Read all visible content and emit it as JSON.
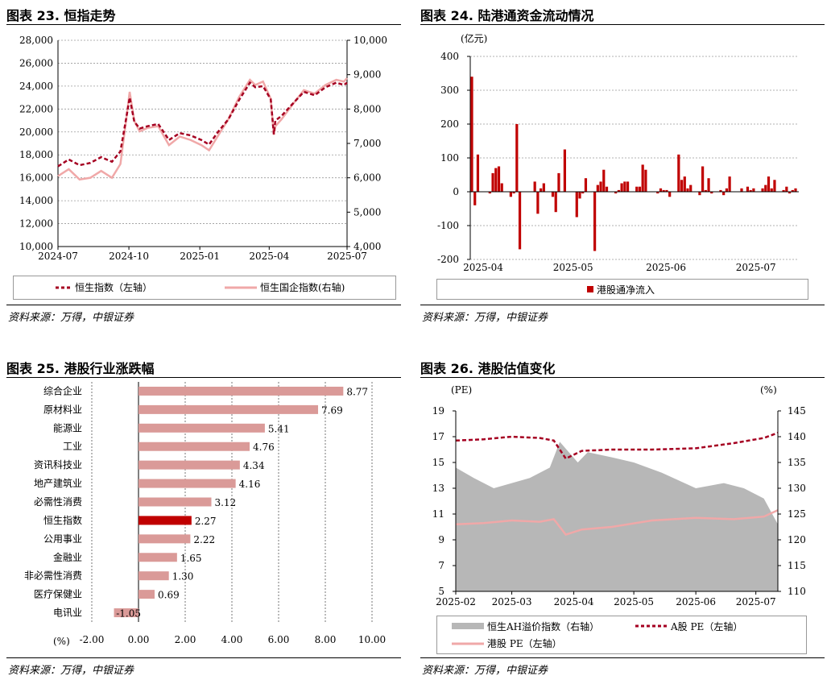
{
  "colors": {
    "darkred": "#A50021",
    "pink": "#F0A8A8",
    "bar": "#C00000",
    "barlight": "#DA9A98",
    "gray": "#B7B7B7"
  },
  "source_text": "资料来源：万得，中银证券",
  "charts": [
    {
      "id": "c23",
      "title": "图表 23. 恒指走势",
      "chart_data": {
        "type": "line",
        "x_ticks": [
          "2024-07",
          "2024-10",
          "2025-01",
          "2025-04",
          "2025-07"
        ],
        "y_left_ticks": [
          "10,000",
          "12,000",
          "14,000",
          "16,000",
          "18,000",
          "20,000",
          "22,000",
          "24,000",
          "26,000",
          "28,000"
        ],
        "y_right_ticks": [
          "4,000",
          "5,000",
          "6,000",
          "7,000",
          "8,000",
          "9,000",
          "10,000"
        ],
        "ylim_left": [
          10000,
          28000
        ],
        "ylim_right": [
          4000,
          10000
        ],
        "legend_position": "bottom",
        "series": [
          {
            "name": "恒生指数（左轴）",
            "axis": "left",
            "style": "dashed",
            "x": [
              "2024-07-01",
              "2024-07-15",
              "2024-07-29",
              "2024-08-12",
              "2024-08-26",
              "2024-09-09",
              "2024-09-20",
              "2024-09-27",
              "2024-10-02",
              "2024-10-08",
              "2024-10-15",
              "2024-10-25",
              "2024-11-08",
              "2024-11-22",
              "2024-12-06",
              "2024-12-20",
              "2025-01-03",
              "2025-01-13",
              "2025-01-24",
              "2025-02-07",
              "2025-02-21",
              "2025-03-07",
              "2025-03-14",
              "2025-03-24",
              "2025-04-03",
              "2025-04-07",
              "2025-04-09",
              "2025-04-17",
              "2025-05-02",
              "2025-05-16",
              "2025-05-30",
              "2025-06-13",
              "2025-06-27",
              "2025-07-07",
              "2025-07-11"
            ],
            "values": [
              17000,
              17600,
              17100,
              17300,
              17800,
              17400,
              18300,
              21000,
              23000,
              20900,
              20300,
              20500,
              20700,
              19300,
              19900,
              19700,
              19300,
              18900,
              19950,
              21100,
              22800,
              24300,
              23900,
              24000,
              22850,
              19800,
              21000,
              21400,
              22500,
              23500,
              23200,
              23900,
              24300,
              24100,
              24300
            ]
          },
          {
            "name": "恒生国企指数(右轴)",
            "axis": "right",
            "style": "solid",
            "x": [
              "2024-07-01",
              "2024-07-15",
              "2024-07-29",
              "2024-08-12",
              "2024-08-26",
              "2024-09-09",
              "2024-09-20",
              "2024-09-27",
              "2024-10-02",
              "2024-10-08",
              "2024-10-15",
              "2024-10-25",
              "2024-11-08",
              "2024-11-22",
              "2024-12-06",
              "2024-12-20",
              "2025-01-03",
              "2025-01-13",
              "2025-01-24",
              "2025-02-07",
              "2025-02-21",
              "2025-03-07",
              "2025-03-14",
              "2025-03-24",
              "2025-04-03",
              "2025-04-07",
              "2025-04-09",
              "2025-04-17",
              "2025-05-02",
              "2025-05-16",
              "2025-05-30",
              "2025-06-13",
              "2025-06-27",
              "2025-07-07",
              "2025-07-11"
            ],
            "values": [
              6050,
              6250,
              5950,
              6000,
              6200,
              6000,
              6400,
              7600,
              8500,
              7650,
              7350,
              7450,
              7500,
              6950,
              7200,
              7100,
              6950,
              6800,
              7200,
              7700,
              8350,
              8850,
              8700,
              8800,
              8300,
              7250,
              7500,
              7700,
              8150,
              8550,
              8450,
              8700,
              8850,
              8800,
              8900
            ]
          }
        ]
      }
    },
    {
      "id": "c24",
      "title": "图表 24. 陆港通资金流动情况",
      "chart_data": {
        "type": "bar",
        "unit_label": "(亿元)",
        "x_ticks": [
          "2025-04",
          "2025-05",
          "2025-06",
          "2025-07"
        ],
        "y_ticks": [
          "-200",
          "-100",
          "0",
          "100",
          "200",
          "300",
          "400"
        ],
        "ylim": [
          -200,
          400
        ],
        "legend_position": "bottom",
        "series": [
          {
            "name": "港股通净流入",
            "x": [
              "2025-04-01",
              "2025-04-02",
              "2025-04-03",
              "2025-04-07",
              "2025-04-08",
              "2025-04-09",
              "2025-04-10",
              "2025-04-11",
              "2025-04-14",
              "2025-04-15",
              "2025-04-16",
              "2025-04-17",
              "2025-04-22",
              "2025-04-23",
              "2025-04-24",
              "2025-04-25",
              "2025-04-28",
              "2025-04-29",
              "2025-04-30",
              "2025-05-02",
              "2025-05-06",
              "2025-05-07",
              "2025-05-08",
              "2025-05-09",
              "2025-05-12",
              "2025-05-13",
              "2025-05-14",
              "2025-05-15",
              "2025-05-16",
              "2025-05-19",
              "2025-05-20",
              "2025-05-21",
              "2025-05-22",
              "2025-05-23",
              "2025-05-26",
              "2025-05-27",
              "2025-05-28",
              "2025-05-29",
              "2025-06-02",
              "2025-06-03",
              "2025-06-04",
              "2025-06-05",
              "2025-06-06",
              "2025-06-09",
              "2025-06-10",
              "2025-06-11",
              "2025-06-12",
              "2025-06-13",
              "2025-06-16",
              "2025-06-17",
              "2025-06-18",
              "2025-06-19",
              "2025-06-20",
              "2025-06-23",
              "2025-06-24",
              "2025-06-25",
              "2025-06-26",
              "2025-06-27",
              "2025-06-30",
              "2025-07-02",
              "2025-07-03",
              "2025-07-04",
              "2025-07-07",
              "2025-07-08",
              "2025-07-09",
              "2025-07-10",
              "2025-07-11",
              "2025-07-14",
              "2025-07-15",
              "2025-07-16",
              "2025-07-17",
              "2025-07-18"
            ],
            "values": [
              340,
              -40,
              110,
              -5,
              55,
              70,
              75,
              25,
              -15,
              -5,
              200,
              -170,
              30,
              -65,
              10,
              25,
              -15,
              -60,
              55,
              125,
              -75,
              -20,
              -5,
              40,
              -175,
              20,
              30,
              65,
              15,
              -5,
              5,
              25,
              30,
              30,
              15,
              15,
              80,
              65,
              -5,
              10,
              5,
              5,
              -15,
              110,
              35,
              45,
              10,
              20,
              -10,
              75,
              5,
              40,
              -5,
              5,
              -10,
              10,
              45,
              0,
              10,
              15,
              5,
              10,
              10,
              20,
              45,
              10,
              35,
              5,
              15,
              -5,
              5,
              10
            ]
          }
        ]
      }
    },
    {
      "id": "c25",
      "title": "图表 25. 港股行业涨跌幅",
      "chart_data": {
        "type": "bar",
        "orientation": "horizontal",
        "unit_label": "(%)",
        "categories": [
          "综合企业",
          "原材料业",
          "能源业",
          "工业",
          "资讯科技业",
          "地产建筑业",
          "必需性消费",
          "恒生指数",
          "公用事业",
          "金融业",
          "非必需性消费",
          "医疗保健业",
          "电讯业"
        ],
        "values": [
          8.77,
          7.69,
          5.41,
          4.76,
          4.34,
          4.16,
          3.12,
          2.27,
          2.22,
          1.65,
          1.3,
          0.69,
          -1.05
        ],
        "value_labels": [
          "8.77",
          "7.69",
          "5.41",
          "4.76",
          "4.34",
          "4.16",
          "3.12",
          "2.27",
          "2.22",
          "1.65",
          "1.30",
          "0.69",
          "-1.05"
        ],
        "highlight": "恒生指数",
        "x_ticks": [
          "-2.00",
          "0.00",
          "2.00",
          "4.00",
          "6.00",
          "8.00",
          "10.00"
        ],
        "xlim": [
          -2,
          10
        ]
      }
    },
    {
      "id": "c26",
      "title": "图表 26. 港股估值变化",
      "chart_data": {
        "type": "area",
        "left_unit": "(PE)",
        "right_unit": "(%)",
        "x_ticks": [
          "2025-02",
          "2025-03",
          "2025-04",
          "2025-05",
          "2025-06",
          "2025-07"
        ],
        "y_left_ticks": [
          "5",
          "7",
          "9",
          "11",
          "13",
          "15",
          "17",
          "19"
        ],
        "y_right_ticks": [
          "110",
          "115",
          "120",
          "125",
          "130",
          "135",
          "140",
          "145"
        ],
        "ylim_left": [
          5,
          19
        ],
        "ylim_right": [
          110,
          145
        ],
        "legend_position": "bottom",
        "series": [
          {
            "name": "恒生AH溢价指数（右轴）",
            "axis": "right",
            "kind": "area",
            "x": [
              "2025-02-01",
              "2025-02-10",
              "2025-02-20",
              "2025-03-01",
              "2025-03-10",
              "2025-03-20",
              "2025-03-25",
              "2025-04-03",
              "2025-04-08",
              "2025-04-20",
              "2025-05-01",
              "2025-05-15",
              "2025-06-01",
              "2025-06-15",
              "2025-06-25",
              "2025-07-05",
              "2025-07-12"
            ],
            "values": [
              134,
              132,
              130,
              131,
              132,
              134,
              139,
              135,
              137,
              136,
              135,
              133,
              130,
              131,
              130,
              128,
              123
            ]
          },
          {
            "name": "A股 PE（左轴）",
            "axis": "left",
            "kind": "line",
            "style": "dashed",
            "x": [
              "2025-02-01",
              "2025-02-15",
              "2025-03-01",
              "2025-03-15",
              "2025-03-22",
              "2025-03-28",
              "2025-04-05",
              "2025-04-20",
              "2025-05-10",
              "2025-06-01",
              "2025-06-20",
              "2025-07-05",
              "2025-07-12"
            ],
            "values": [
              16.7,
              16.8,
              17.0,
              16.9,
              16.7,
              15.3,
              15.9,
              16.0,
              16.0,
              16.1,
              16.5,
              16.9,
              17.3
            ]
          },
          {
            "name": "港股 PE（左轴）",
            "axis": "left",
            "kind": "line",
            "style": "solid",
            "x": [
              "2025-02-01",
              "2025-02-15",
              "2025-03-01",
              "2025-03-15",
              "2025-03-22",
              "2025-03-28",
              "2025-04-05",
              "2025-04-20",
              "2025-05-10",
              "2025-06-01",
              "2025-06-20",
              "2025-07-05",
              "2025-07-12"
            ],
            "values": [
              10.2,
              10.3,
              10.5,
              10.4,
              10.6,
              9.4,
              9.8,
              10.0,
              10.5,
              10.7,
              10.6,
              10.8,
              11.3
            ]
          }
        ]
      }
    }
  ]
}
